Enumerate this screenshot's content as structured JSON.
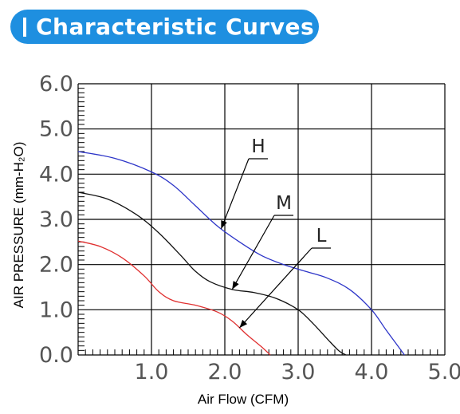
{
  "header": {
    "title": "Characteristic Curves"
  },
  "colors": {
    "header_bg": "#1e8fe0",
    "H": "#2d35c8",
    "M": "#111111",
    "L": "#e03030",
    "grid": "#000000"
  },
  "chart_data": {
    "type": "line",
    "xlabel": "Air Flow (CFM)",
    "ylabel": "AIR PRESSURE (mm-H₂O)",
    "xlim": [
      0,
      5.0
    ],
    "ylim": [
      0,
      6.0
    ],
    "xticks": [
      "1.0",
      "2.0",
      "3.0",
      "4.0",
      "5.0"
    ],
    "yticks": [
      "0.0",
      "1.0",
      "2.0",
      "3.0",
      "4.0",
      "5.0",
      "6.0"
    ],
    "grid": true,
    "series": [
      {
        "name": "H",
        "x": [
          0.0,
          0.5,
          1.0,
          1.3,
          1.6,
          1.9,
          2.2,
          2.5,
          2.8,
          3.1,
          3.4,
          3.7,
          4.0,
          4.2,
          4.45
        ],
        "y": [
          4.5,
          4.35,
          4.05,
          3.75,
          3.3,
          2.85,
          2.5,
          2.2,
          2.0,
          1.85,
          1.7,
          1.45,
          1.0,
          0.55,
          0.0
        ]
      },
      {
        "name": "M",
        "x": [
          0.0,
          0.4,
          0.8,
          1.1,
          1.4,
          1.6,
          1.8,
          2.1,
          2.4,
          2.7,
          3.0,
          3.2,
          3.4,
          3.55,
          3.65
        ],
        "y": [
          3.6,
          3.45,
          3.1,
          2.7,
          2.2,
          1.85,
          1.62,
          1.45,
          1.38,
          1.25,
          1.0,
          0.7,
          0.35,
          0.1,
          0.0
        ]
      },
      {
        "name": "L",
        "x": [
          0.0,
          0.3,
          0.6,
          0.9,
          1.1,
          1.3,
          1.6,
          1.9,
          2.1,
          2.3,
          2.5,
          2.62
        ],
        "y": [
          2.52,
          2.4,
          2.15,
          1.75,
          1.4,
          1.2,
          1.1,
          0.95,
          0.75,
          0.45,
          0.18,
          0.0
        ]
      }
    ]
  }
}
